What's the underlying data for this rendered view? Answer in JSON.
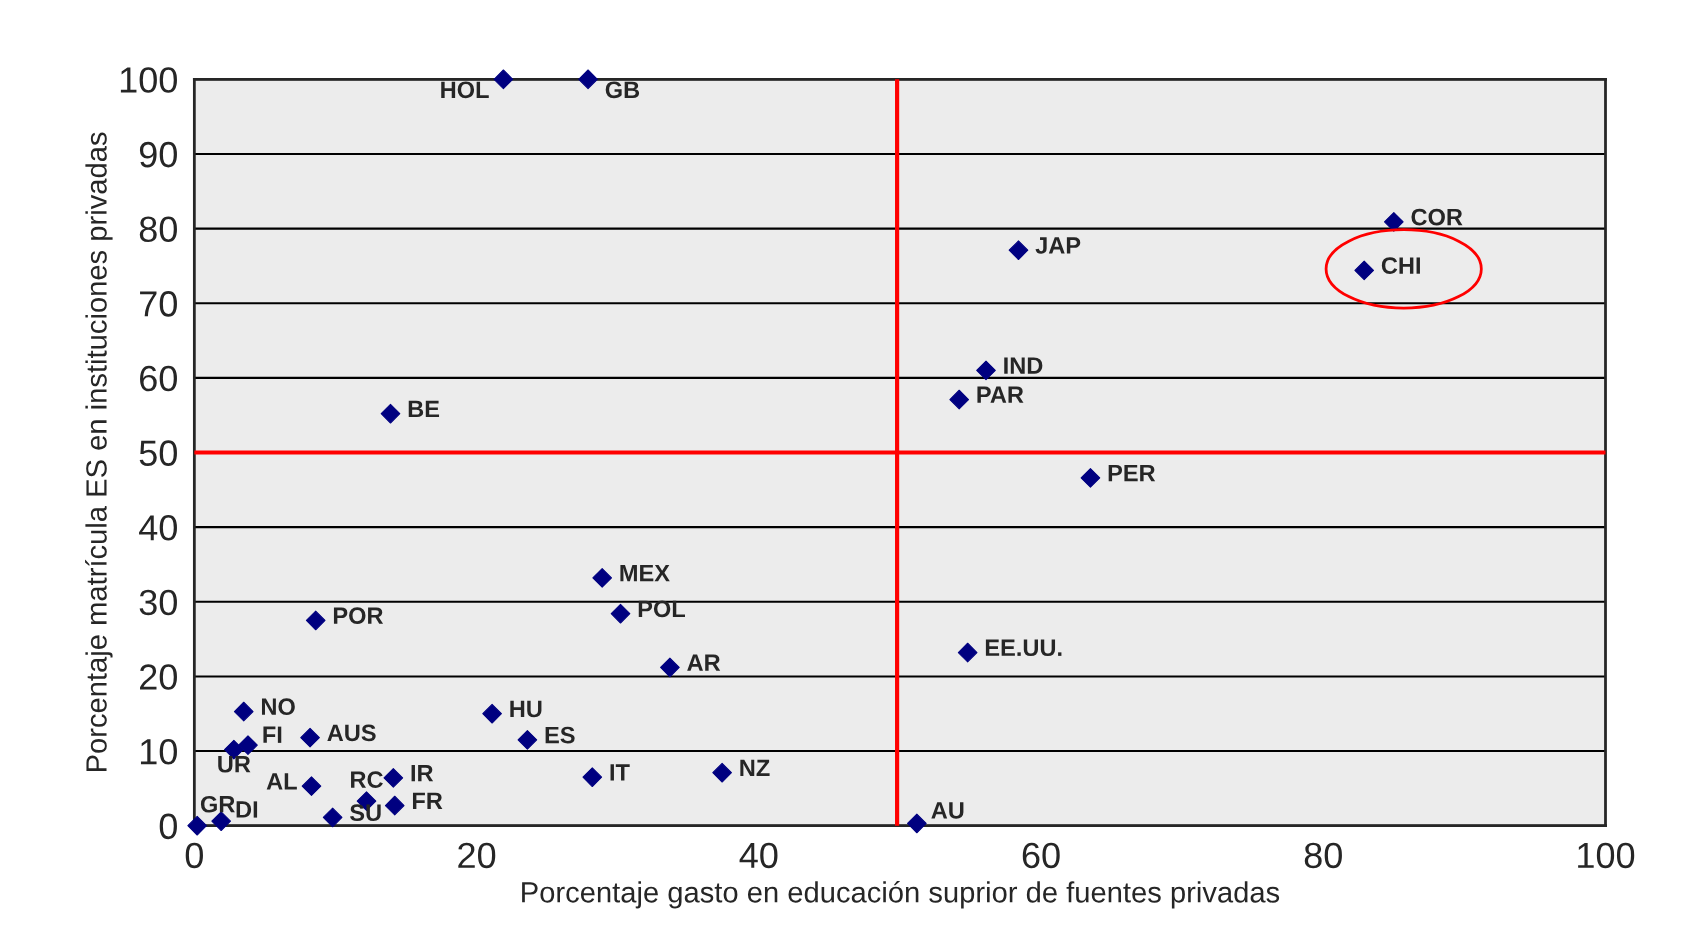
{
  "chart_data": {
    "type": "scatter",
    "xlabel": "Porcentaje gasto en educación suprior de fuentes privadas",
    "ylabel": "Porcentaje matrícula ES en instituciones privadas",
    "x": [
      21.9,
      27.9,
      85.0,
      82.9,
      58.4,
      56.1,
      54.2,
      13.9,
      63.5,
      28.9,
      30.2,
      8.6,
      33.7,
      54.8,
      3.5,
      21.1,
      8.2,
      23.6,
      2.8,
      3.8,
      8.3,
      14.1,
      28.2,
      37.4,
      12.2,
      14.2,
      9.8,
      0.2,
      1.9,
      51.2
    ],
    "series": [
      {
        "color": "#000080",
        "values": [
          100,
          100,
          80.9,
          74.4,
          77.1,
          61.0,
          57.1,
          55.2,
          46.6,
          33.2,
          28.4,
          27.5,
          21.2,
          23.2,
          15.3,
          15.0,
          11.8,
          11.5,
          10.2,
          10.8,
          5.3,
          6.4,
          6.5,
          7.1,
          3.3,
          2.7,
          1.1,
          0,
          0.6,
          0.3
        ]
      }
    ],
    "annotations": [
      {
        "text": "HOL",
        "x": 21.9,
        "y": 100
      },
      {
        "text": "GB",
        "x": 27.9,
        "y": 100
      },
      {
        "text": "COR",
        "x": 85.0,
        "y": 80.9
      },
      {
        "text": "CHI",
        "x": 82.9,
        "y": 74.4
      },
      {
        "text": "JAP",
        "x": 58.4,
        "y": 77.1
      },
      {
        "text": "IND",
        "x": 56.1,
        "y": 61.0
      },
      {
        "text": "PAR",
        "x": 54.2,
        "y": 57.1
      },
      {
        "text": "BE",
        "x": 13.9,
        "y": 55.2
      },
      {
        "text": "PER",
        "x": 63.5,
        "y": 46.6
      },
      {
        "text": "MEX",
        "x": 28.9,
        "y": 33.2
      },
      {
        "text": "POL",
        "x": 30.2,
        "y": 28.4
      },
      {
        "text": "POR",
        "x": 8.6,
        "y": 27.5
      },
      {
        "text": "AR",
        "x": 33.7,
        "y": 21.2
      },
      {
        "text": "EE.UU.",
        "x": 54.8,
        "y": 23.2
      },
      {
        "text": "NO",
        "x": 3.5,
        "y": 15.3
      },
      {
        "text": "HU",
        "x": 21.1,
        "y": 15.0
      },
      {
        "text": "AUS",
        "x": 8.2,
        "y": 11.8
      },
      {
        "text": "ES",
        "x": 23.6,
        "y": 11.5
      },
      {
        "text": "UR",
        "x": 2.8,
        "y": 10.2
      },
      {
        "text": "FI",
        "x": 3.8,
        "y": 10.8
      },
      {
        "text": "AL",
        "x": 8.3,
        "y": 5.3
      },
      {
        "text": "IR",
        "x": 14.1,
        "y": 6.4
      },
      {
        "text": "IT",
        "x": 28.2,
        "y": 6.5
      },
      {
        "text": "NZ",
        "x": 37.4,
        "y": 7.1
      },
      {
        "text": "RC",
        "x": 12.2,
        "y": 3.3
      },
      {
        "text": "FR",
        "x": 14.2,
        "y": 2.7
      },
      {
        "text": "SU",
        "x": 9.8,
        "y": 1.1
      },
      {
        "text": "GR",
        "x": 0.2,
        "y": 0
      },
      {
        "text": "DI",
        "x": 1.9,
        "y": 0.6
      },
      {
        "text": "AU",
        "x": 51.2,
        "y": 0.3
      }
    ],
    "ref_lines": [
      {
        "axis": "x",
        "value": 49.8,
        "color": "#ff0000"
      },
      {
        "axis": "y",
        "value": 50,
        "color": "#ff0000"
      }
    ],
    "xlim": [
      0,
      100
    ],
    "ylim": [
      0,
      100
    ],
    "xticks": [
      0,
      20,
      40,
      60,
      80,
      100
    ],
    "yticks": [
      0,
      10,
      20,
      30,
      40,
      50,
      60,
      70,
      80,
      90,
      100
    ],
    "grid": "y",
    "marker": "diamond",
    "legend": false
  }
}
